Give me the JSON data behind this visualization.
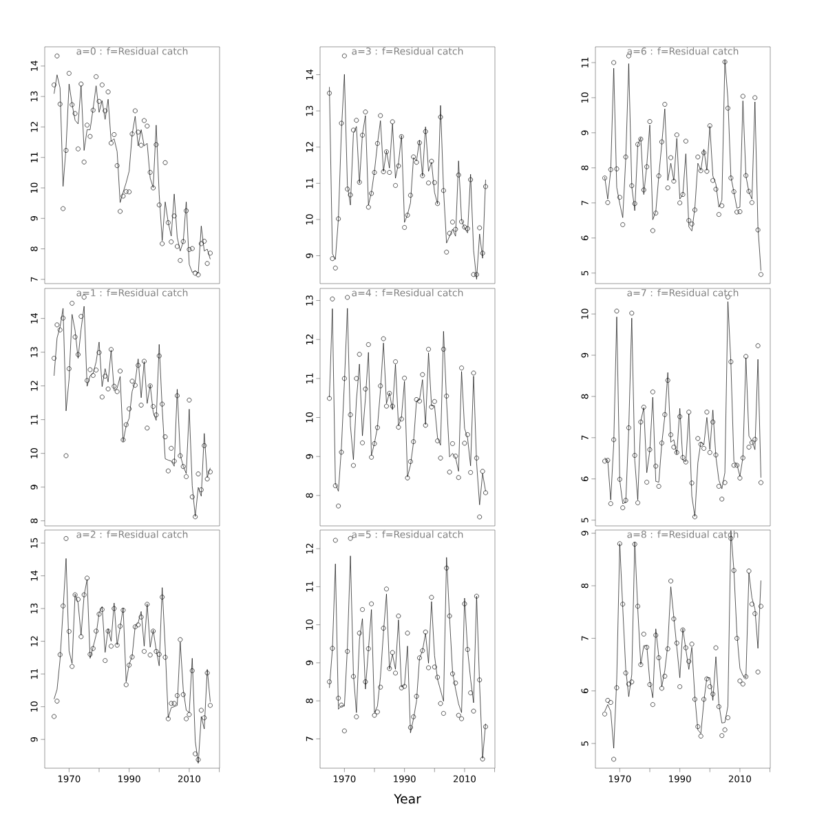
{
  "chart_data": [
    {
      "type": "scatter",
      "title": "a=0 : f=Residual catch",
      "xlim": [
        1961.9,
        2020.1
      ],
      "ylim": [
        6.86,
        14.63
      ],
      "yticks": [
        7,
        8,
        9,
        10,
        11,
        12,
        13,
        14
      ],
      "tick_labels": "y",
      "x": [
        1965,
        1966,
        1967,
        1968,
        1969,
        1970,
        1971,
        1972,
        1973,
        1974,
        1975,
        1976,
        1977,
        1978,
        1979,
        1980,
        1981,
        1982,
        1983,
        1984,
        1985,
        1986,
        1987,
        1988,
        1989,
        1990,
        1991,
        1992,
        1993,
        1994,
        1995,
        1996,
        1997,
        1998,
        1999,
        2000,
        2001,
        2002,
        2003,
        2004,
        2005,
        2006,
        2007,
        2008,
        2009,
        2010,
        2011,
        2012,
        2013,
        2014,
        2015,
        2016,
        2017
      ],
      "series": [
        {
          "type": "scatter",
          "marker": "circle",
          "color": "#000000",
          "values": [
            13.38,
            14.33,
            12.75,
            9.32,
            11.23,
            13.76,
            12.73,
            12.44,
            11.28,
            13.41,
            10.85,
            12.06,
            11.69,
            12.55,
            13.65,
            12.84,
            13.38,
            12.53,
            13.15,
            11.47,
            11.75,
            10.73,
            9.23,
            9.73,
            9.88,
            9.87,
            11.77,
            12.53,
            11.83,
            11.4,
            12.21,
            12.03,
            10.51,
            10.0,
            11.42,
            9.44,
            8.17,
            10.83,
            8.86,
            8.23,
            9.08,
            8.08,
            7.62,
            8.24,
            9.25,
            7.98,
            8.01,
            7.2,
            7.15,
            8.17,
            8.25,
            7.52,
            7.86
          ]
        },
        {
          "type": "line",
          "marker": "none",
          "color": "#000000",
          "values": [
            13.09,
            13.71,
            13.28,
            10.05,
            11.34,
            13.41,
            12.75,
            12.22,
            12.1,
            13.35,
            11.23,
            11.91,
            11.91,
            12.6,
            13.35,
            12.48,
            12.86,
            12.25,
            12.91,
            11.53,
            11.61,
            11.19,
            9.52,
            9.86,
            10.17,
            10.55,
            11.76,
            12.35,
            11.38,
            11.91,
            11.38,
            11.46,
            10.32,
            10.01,
            12.06,
            9.79,
            8.27,
            9.54,
            8.87,
            8.42,
            9.8,
            8.38,
            7.93,
            8.23,
            9.54,
            7.49,
            7.23,
            7.28,
            7.2,
            8.75,
            7.93,
            7.99,
            7.66
          ]
        }
      ]
    },
    {
      "type": "scatter",
      "title": "a=3 : f=Residual catch",
      "xlim": [
        1961.9,
        2020.1
      ],
      "ylim": [
        8.23,
        14.77
      ],
      "yticks": [
        9,
        10,
        11,
        12,
        13,
        14
      ],
      "tick_labels": "y",
      "x": [
        1965,
        1966,
        1967,
        1968,
        1969,
        1970,
        1971,
        1972,
        1973,
        1974,
        1975,
        1976,
        1977,
        1978,
        1979,
        1980,
        1981,
        1982,
        1983,
        1984,
        1985,
        1986,
        1987,
        1988,
        1989,
        1990,
        1991,
        1992,
        1993,
        1994,
        1995,
        1996,
        1997,
        1998,
        1999,
        2000,
        2001,
        2002,
        2003,
        2004,
        2005,
        2006,
        2007,
        2008,
        2009,
        2010,
        2011,
        2012,
        2013,
        2014,
        2015,
        2016,
        2017
      ],
      "series": [
        {
          "type": "scatter",
          "marker": "circle",
          "color": "#000000",
          "values": [
            13.49,
            8.92,
            8.66,
            10.02,
            12.66,
            14.52,
            10.84,
            10.68,
            12.47,
            12.74,
            11.03,
            12.33,
            12.97,
            10.34,
            10.72,
            11.3,
            12.1,
            12.87,
            11.32,
            11.87,
            11.3,
            12.7,
            10.94,
            11.48,
            12.29,
            9.78,
            10.12,
            10.67,
            11.73,
            11.58,
            12.12,
            11.21,
            12.43,
            11.01,
            11.61,
            11.02,
            10.44,
            12.83,
            10.8,
            9.1,
            9.62,
            9.93,
            9.73,
            11.23,
            9.94,
            9.79,
            9.75,
            11.1,
            8.48,
            8.48,
            9.77,
            9.07,
            10.91
          ]
        },
        {
          "type": "line",
          "marker": "none",
          "color": "#000000",
          "values": [
            13.66,
            9.06,
            8.9,
            10.02,
            12.45,
            14.01,
            10.94,
            10.4,
            12.38,
            12.57,
            11.01,
            12.35,
            12.87,
            10.4,
            10.75,
            11.33,
            12.09,
            12.73,
            11.33,
            11.9,
            11.42,
            12.64,
            11.14,
            11.55,
            12.32,
            9.92,
            10.14,
            10.46,
            11.71,
            11.62,
            12.19,
            11.2,
            12.56,
            11.33,
            11.58,
            10.75,
            10.43,
            13.15,
            10.82,
            9.35,
            9.54,
            9.73,
            9.54,
            11.62,
            9.98,
            9.76,
            9.63,
            11.25,
            9.15,
            8.35,
            9.6,
            8.93,
            11.1
          ]
        }
      ]
    },
    {
      "type": "scatter",
      "title": "a=6 : f=Residual catch",
      "xlim": [
        1961.9,
        2020.1
      ],
      "ylim": [
        4.7,
        11.45
      ],
      "yticks": [
        5,
        6,
        7,
        8,
        9,
        10,
        11
      ],
      "tick_labels": "y",
      "x": [
        1965,
        1966,
        1967,
        1968,
        1969,
        1970,
        1971,
        1972,
        1973,
        1974,
        1975,
        1976,
        1977,
        1978,
        1979,
        1980,
        1981,
        1982,
        1983,
        1984,
        1985,
        1986,
        1987,
        1988,
        1989,
        1990,
        1991,
        1992,
        1993,
        1994,
        1995,
        1996,
        1997,
        1998,
        1999,
        2000,
        2001,
        2002,
        2003,
        2004,
        2005,
        2006,
        2007,
        2008,
        2009,
        2010,
        2011,
        2012,
        2013,
        2014,
        2015,
        2016,
        2017
      ],
      "series": [
        {
          "type": "scatter",
          "marker": "circle",
          "color": "#000000",
          "values": [
            7.71,
            7.01,
            7.95,
            11.0,
            7.97,
            7.16,
            6.38,
            8.31,
            11.19,
            7.49,
            6.98,
            8.67,
            8.82,
            7.37,
            8.03,
            9.32,
            6.21,
            6.71,
            7.77,
            8.74,
            9.81,
            7.43,
            8.29,
            7.62,
            8.94,
            7.0,
            7.24,
            8.76,
            6.5,
            6.4,
            6.8,
            8.31,
            7.92,
            8.43,
            7.9,
            9.2,
            7.64,
            7.39,
            6.67,
            6.92,
            11.02,
            9.7,
            7.71,
            7.32,
            6.74,
            6.75,
            10.04,
            7.78,
            7.33,
            7.01,
            10.0,
            6.23,
            4.96
          ]
        },
        {
          "type": "line",
          "marker": "none",
          "color": "#000000",
          "values": [
            7.74,
            7.11,
            7.93,
            10.84,
            7.44,
            6.98,
            6.58,
            8.26,
            10.97,
            7.47,
            6.78,
            8.66,
            8.86,
            7.24,
            8.07,
            9.22,
            6.52,
            6.75,
            7.77,
            8.69,
            9.68,
            7.64,
            8.13,
            7.64,
            8.84,
            7.11,
            7.24,
            8.4,
            6.32,
            6.2,
            6.85,
            8.13,
            7.93,
            8.53,
            7.93,
            9.19,
            7.77,
            7.54,
            6.88,
            7.08,
            11.07,
            9.98,
            7.74,
            7.31,
            6.85,
            6.88,
            9.91,
            7.77,
            7.31,
            7.11,
            9.88,
            6.32,
            5.07
          ]
        }
      ]
    },
    {
      "type": "scatter",
      "title": "a=1 : f=Residual catch",
      "xlim": [
        1961.9,
        2020.1
      ],
      "ylim": [
        7.85,
        14.89
      ],
      "yticks": [
        8,
        9,
        10,
        11,
        12,
        13,
        14
      ],
      "tick_labels": "y",
      "x": [
        1965,
        1966,
        1967,
        1968,
        1969,
        1970,
        1971,
        1972,
        1973,
        1974,
        1975,
        1976,
        1977,
        1978,
        1979,
        1980,
        1981,
        1982,
        1983,
        1984,
        1985,
        1986,
        1987,
        1988,
        1989,
        1990,
        1991,
        1992,
        1993,
        1994,
        1995,
        1996,
        1997,
        1998,
        1999,
        2000,
        2001,
        2002,
        2003,
        2004,
        2005,
        2006,
        2007,
        2008,
        2009,
        2010,
        2011,
        2012,
        2013,
        2014,
        2015,
        2016,
        2017
      ],
      "series": [
        {
          "type": "scatter",
          "marker": "circle",
          "color": "#000000",
          "values": [
            12.82,
            13.81,
            13.66,
            14.01,
            9.93,
            12.51,
            14.45,
            13.45,
            12.93,
            14.06,
            14.63,
            12.16,
            12.48,
            12.31,
            12.47,
            12.99,
            11.67,
            12.29,
            11.91,
            13.08,
            11.99,
            11.83,
            12.44,
            10.4,
            10.85,
            11.32,
            12.14,
            12.02,
            12.61,
            11.43,
            12.73,
            10.75,
            12.0,
            11.39,
            11.14,
            12.89,
            11.46,
            10.49,
            9.48,
            10.15,
            9.77,
            11.71,
            9.93,
            9.61,
            9.31,
            11.58,
            8.71,
            8.12,
            9.39,
            8.92,
            10.23,
            9.24,
            9.45
          ]
        },
        {
          "type": "line",
          "marker": "none",
          "color": "#000000",
          "values": [
            12.3,
            13.42,
            13.75,
            14.3,
            11.26,
            12.2,
            14.12,
            13.64,
            12.82,
            13.68,
            14.36,
            11.99,
            12.3,
            12.37,
            12.71,
            13.3,
            11.98,
            12.51,
            12.12,
            13.06,
            11.86,
            11.93,
            12.28,
            10.35,
            10.82,
            11.04,
            11.84,
            12.11,
            12.8,
            11.65,
            12.72,
            11.48,
            12.03,
            11.22,
            10.98,
            13.23,
            11.33,
            9.84,
            9.8,
            9.77,
            9.62,
            11.9,
            9.96,
            9.62,
            9.4,
            11.31,
            9.04,
            8.13,
            8.99,
            8.73,
            10.59,
            9.29,
            9.57
          ]
        }
      ]
    },
    {
      "type": "scatter",
      "title": "a=4 : f=Residual catch",
      "xlim": [
        1961.9,
        2020.1
      ],
      "ylim": [
        7.22,
        13.31
      ],
      "yticks": [
        8,
        9,
        10,
        11,
        12,
        13
      ],
      "tick_labels": "y",
      "x": [
        1965,
        1966,
        1967,
        1968,
        1969,
        1970,
        1971,
        1972,
        1973,
        1974,
        1975,
        1976,
        1977,
        1978,
        1979,
        1980,
        1981,
        1982,
        1983,
        1984,
        1985,
        1986,
        1987,
        1988,
        1989,
        1990,
        1991,
        1992,
        1993,
        1994,
        1995,
        1996,
        1997,
        1998,
        1999,
        2000,
        2001,
        2002,
        2003,
        2004,
        2005,
        2006,
        2007,
        2008,
        2009,
        2010,
        2011,
        2012,
        2013,
        2014,
        2015,
        2016,
        2017
      ],
      "series": [
        {
          "type": "scatter",
          "marker": "circle",
          "color": "#000000",
          "values": [
            10.49,
            13.04,
            8.25,
            7.73,
            9.11,
            11.0,
            13.08,
            10.07,
            8.77,
            11.0,
            11.62,
            9.35,
            10.73,
            11.87,
            8.98,
            9.33,
            9.74,
            10.81,
            12.02,
            10.29,
            10.62,
            10.29,
            11.43,
            9.75,
            9.96,
            11.01,
            8.45,
            8.87,
            9.38,
            10.46,
            10.42,
            11.1,
            9.8,
            11.75,
            10.27,
            10.41,
            9.4,
            8.96,
            11.75,
            10.55,
            8.6,
            9.33,
            9.01,
            8.46,
            11.27,
            9.34,
            9.56,
            8.59,
            11.14,
            8.96,
            7.45,
            8.62,
            8.07
          ]
        },
        {
          "type": "line",
          "marker": "none",
          "color": "#000000",
          "values": [
            10.52,
            12.79,
            8.3,
            8.11,
            9.22,
            10.9,
            12.8,
            9.79,
            8.92,
            10.45,
            11.37,
            9.53,
            10.49,
            11.67,
            9.03,
            9.34,
            9.75,
            10.7,
            11.91,
            10.36,
            10.63,
            10.2,
            11.36,
            9.79,
            10.01,
            10.93,
            8.48,
            8.78,
            9.36,
            10.42,
            10.45,
            10.97,
            9.82,
            11.66,
            10.3,
            10.3,
            9.48,
            9.29,
            12.21,
            10.43,
            8.99,
            9.08,
            8.97,
            8.62,
            11.18,
            9.72,
            9.47,
            8.76,
            11.06,
            8.84,
            7.76,
            8.56,
            8.11
          ]
        }
      ]
    },
    {
      "type": "scatter",
      "title": "a=7 : f=Residual catch",
      "xlim": [
        1961.9,
        2020.1
      ],
      "ylim": [
        4.86,
        10.62
      ],
      "yticks": [
        5,
        6,
        7,
        8,
        9,
        10
      ],
      "tick_labels": "y",
      "x": [
        1965,
        1966,
        1967,
        1968,
        1969,
        1970,
        1971,
        1972,
        1973,
        1974,
        1975,
        1976,
        1977,
        1978,
        1979,
        1980,
        1981,
        1982,
        1983,
        1984,
        1985,
        1986,
        1987,
        1988,
        1989,
        1990,
        1991,
        1992,
        1993,
        1994,
        1995,
        1996,
        1997,
        1998,
        1999,
        2000,
        2001,
        2002,
        2003,
        2004,
        2005,
        2006,
        2007,
        2008,
        2009,
        2010,
        2011,
        2012,
        2013,
        2014,
        2015,
        2016,
        2017
      ],
      "series": [
        {
          "type": "scatter",
          "marker": "circle",
          "color": "#000000",
          "values": [
            6.43,
            6.45,
            5.4,
            6.95,
            10.07,
            5.99,
            5.3,
            5.48,
            7.24,
            10.02,
            6.57,
            5.42,
            7.38,
            7.74,
            5.92,
            6.71,
            8.11,
            6.31,
            5.82,
            6.87,
            7.56,
            8.39,
            7.07,
            6.77,
            6.64,
            7.51,
            6.52,
            6.41,
            7.62,
            5.9,
            5.08,
            6.98,
            6.84,
            6.74,
            7.62,
            6.64,
            7.38,
            6.58,
            5.82,
            5.51,
            5.91,
            10.41,
            8.84,
            6.33,
            6.33,
            6.02,
            6.51,
            8.97,
            6.77,
            6.88,
            6.96,
            9.23,
            5.91
          ]
        },
        {
          "type": "line",
          "marker": "none",
          "color": "#000000",
          "values": [
            6.51,
            6.45,
            5.49,
            6.86,
            9.93,
            5.97,
            5.4,
            5.43,
            7.22,
            9.9,
            6.45,
            5.49,
            7.4,
            7.73,
            6.15,
            6.68,
            7.98,
            5.94,
            5.92,
            6.86,
            7.52,
            8.58,
            6.89,
            6.95,
            6.6,
            7.71,
            6.45,
            6.42,
            7.58,
            5.58,
            5.09,
            6.39,
            6.89,
            6.83,
            7.49,
            6.71,
            7.67,
            6.54,
            5.97,
            5.76,
            6.15,
            10.3,
            8.8,
            6.42,
            6.36,
            6.06,
            6.52,
            8.94,
            7.04,
            6.92,
            6.71,
            8.9,
            6.03
          ]
        }
      ]
    },
    {
      "type": "scatter",
      "title": "a=2 : f=Residual catch",
      "xlim": [
        1961.9,
        2020.1
      ],
      "ylim": [
        8.12,
        15.4
      ],
      "yticks": [
        9,
        10,
        11,
        12,
        13,
        14,
        15
      ],
      "xticks": [
        1970,
        {
          "value": 1980,
          "label": null
        },
        1990,
        {
          "value": 2000,
          "label": null
        },
        2010,
        {
          "value": 2020,
          "label": null
        }
      ],
      "x": [
        1965,
        1966,
        1967,
        1968,
        1969,
        1970,
        1971,
        1972,
        1973,
        1974,
        1975,
        1976,
        1977,
        1978,
        1979,
        1980,
        1981,
        1982,
        1983,
        1984,
        1985,
        1986,
        1987,
        1988,
        1989,
        1990,
        1991,
        1992,
        1993,
        1994,
        1995,
        1996,
        1997,
        1998,
        1999,
        2000,
        2001,
        2002,
        2003,
        2004,
        2005,
        2006,
        2007,
        2008,
        2009,
        2010,
        2011,
        2012,
        2013,
        2014,
        2015,
        2016,
        2017
      ],
      "series": [
        {
          "type": "scatter",
          "marker": "circle",
          "color": "#000000",
          "values": [
            9.7,
            10.17,
            11.59,
            13.08,
            15.14,
            12.3,
            11.23,
            13.42,
            13.28,
            12.14,
            13.42,
            13.93,
            11.6,
            11.78,
            12.31,
            12.83,
            12.97,
            11.41,
            12.31,
            11.85,
            13.0,
            11.88,
            12.46,
            12.95,
            10.67,
            11.27,
            11.52,
            12.44,
            12.5,
            12.74,
            11.69,
            13.13,
            11.58,
            12.31,
            11.69,
            11.6,
            13.35,
            11.51,
            9.63,
            10.1,
            10.1,
            10.34,
            12.05,
            10.37,
            9.63,
            9.76,
            11.1,
            8.56,
            8.38,
            9.89,
            9.66,
            11.03,
            10.04
          ]
        },
        {
          "type": "line",
          "marker": "none",
          "color": "#000000",
          "values": [
            10.23,
            10.53,
            11.44,
            12.95,
            14.53,
            11.7,
            11.32,
            13.44,
            13.17,
            12.19,
            13.4,
            13.89,
            11.48,
            11.82,
            12.19,
            12.87,
            13.06,
            11.66,
            12.38,
            12.0,
            13.17,
            11.89,
            12.42,
            13.02,
            10.76,
            11.29,
            11.55,
            12.46,
            12.57,
            12.91,
            11.85,
            13.14,
            11.82,
            12.34,
            11.74,
            11.25,
            13.64,
            11.82,
            9.66,
            9.97,
            10.0,
            10.04,
            11.97,
            10.53,
            9.89,
            9.82,
            11.48,
            8.95,
            8.27,
            9.7,
            9.32,
            11.14,
            10.15
          ]
        }
      ]
    },
    {
      "type": "scatter",
      "title": "a=5 : f=Residual catch",
      "xlabel": "Year",
      "xlim": [
        1961.9,
        2020.1
      ],
      "ylim": [
        6.23,
        12.49
      ],
      "yticks": [
        7,
        8,
        9,
        10,
        11,
        12
      ],
      "xticks": [
        1970,
        {
          "value": 1980,
          "label": null
        },
        1990,
        {
          "value": 2000,
          "label": null
        },
        2010,
        {
          "value": 2020,
          "label": null
        }
      ],
      "x": [
        1965,
        1966,
        1967,
        1968,
        1969,
        1970,
        1971,
        1972,
        1973,
        1974,
        1975,
        1976,
        1977,
        1978,
        1979,
        1980,
        1981,
        1982,
        1983,
        1984,
        1985,
        1986,
        1987,
        1988,
        1989,
        1990,
        1991,
        1992,
        1993,
        1994,
        1995,
        1996,
        1997,
        1998,
        1999,
        2000,
        2001,
        2002,
        2003,
        2004,
        2005,
        2006,
        2007,
        2008,
        2009,
        2010,
        2011,
        2012,
        2013,
        2014,
        2015,
        2016,
        2017
      ],
      "series": [
        {
          "type": "scatter",
          "marker": "circle",
          "color": "#000000",
          "values": [
            8.5,
            9.38,
            12.22,
            8.07,
            7.89,
            7.21,
            9.3,
            12.27,
            8.64,
            7.58,
            9.78,
            10.4,
            8.5,
            9.37,
            10.55,
            7.62,
            7.71,
            8.36,
            9.91,
            10.94,
            8.85,
            9.27,
            8.73,
            10.23,
            8.34,
            8.38,
            9.78,
            7.3,
            7.58,
            8.12,
            9.13,
            9.32,
            9.81,
            8.87,
            10.72,
            8.89,
            8.62,
            7.93,
            7.67,
            11.49,
            10.23,
            8.71,
            8.47,
            7.62,
            7.53,
            10.55,
            9.35,
            8.21,
            7.73,
            10.75,
            8.55,
            6.47,
            7.32
          ]
        },
        {
          "type": "line",
          "marker": "none",
          "color": "#000000",
          "values": [
            8.34,
            9.35,
            11.6,
            7.78,
            7.87,
            7.86,
            9.41,
            11.81,
            8.7,
            7.69,
            9.61,
            10.16,
            8.31,
            9.35,
            10.4,
            7.69,
            7.86,
            8.63,
            9.8,
            10.81,
            8.84,
            9.22,
            8.83,
            10.13,
            8.37,
            8.41,
            9.44,
            7.16,
            7.53,
            7.99,
            9.12,
            9.32,
            9.77,
            8.99,
            10.61,
            9.19,
            8.57,
            8.28,
            7.99,
            11.77,
            10.19,
            8.76,
            8.31,
            7.92,
            7.69,
            10.7,
            9.35,
            8.57,
            7.95,
            10.75,
            8.44,
            6.49,
            7.4
          ]
        }
      ]
    },
    {
      "type": "scatter",
      "title": "a=8 : f=Residual catch",
      "xlim": [
        1961.9,
        2020.1
      ],
      "ylim": [
        4.53,
        9.06
      ],
      "yticks": [
        5,
        6,
        7,
        8,
        9
      ],
      "xticks": [
        1970,
        {
          "value": 1980,
          "label": null
        },
        1990,
        {
          "value": 2000,
          "label": null
        },
        2010,
        {
          "value": 2020,
          "label": null
        }
      ],
      "x": [
        1965,
        1966,
        1967,
        1968,
        1969,
        1970,
        1971,
        1972,
        1973,
        1974,
        1975,
        1976,
        1977,
        1978,
        1979,
        1980,
        1981,
        1982,
        1983,
        1984,
        1985,
        1986,
        1987,
        1988,
        1989,
        1990,
        1991,
        1992,
        1993,
        1994,
        1995,
        1996,
        1997,
        1998,
        1999,
        2000,
        2001,
        2002,
        2003,
        2004,
        2005,
        2006,
        2007,
        2008,
        2009,
        2010,
        2011,
        2012,
        2013,
        2014,
        2015,
        2016,
        2017
      ],
      "series": [
        {
          "type": "scatter",
          "marker": "circle",
          "color": "#000000",
          "values": [
            5.56,
            5.82,
            5.78,
            4.7,
            6.06,
            8.8,
            7.65,
            6.34,
            6.13,
            6.17,
            8.79,
            7.61,
            6.5,
            7.08,
            6.83,
            6.12,
            5.74,
            7.06,
            6.63,
            6.05,
            6.28,
            6.8,
            8.09,
            7.37,
            6.91,
            6.08,
            7.16,
            6.82,
            6.56,
            6.89,
            5.84,
            5.32,
            5.14,
            5.84,
            6.23,
            6.08,
            5.94,
            6.82,
            5.7,
            5.15,
            5.26,
            5.49,
            8.9,
            8.29,
            7.0,
            6.19,
            6.13,
            6.27,
            8.28,
            7.65,
            7.47,
            6.36,
            7.61
          ]
        },
        {
          "type": "line",
          "marker": "none",
          "color": "#000000",
          "values": [
            5.61,
            5.74,
            5.61,
            4.91,
            6.22,
            8.8,
            7.58,
            6.41,
            5.89,
            6.31,
            8.83,
            7.56,
            6.5,
            6.86,
            6.86,
            6.18,
            5.87,
            7.18,
            6.65,
            6.08,
            6.39,
            6.88,
            7.98,
            7.4,
            6.83,
            6.25,
            7.18,
            6.79,
            6.41,
            6.83,
            5.89,
            5.26,
            5.19,
            5.8,
            6.25,
            6.25,
            5.82,
            6.65,
            5.75,
            5.39,
            5.4,
            5.71,
            9.05,
            8.29,
            7.09,
            6.43,
            6.29,
            6.25,
            8.24,
            7.77,
            7.56,
            6.81,
            8.1
          ]
        }
      ]
    }
  ]
}
